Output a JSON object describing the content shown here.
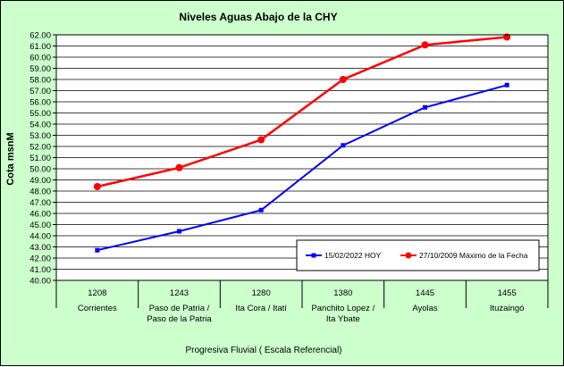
{
  "chart_data": {
    "type": "line",
    "title": "Niveles Aguas Abajo de la CHY",
    "ylabel": "Cota msnM",
    "xlabel": "Progresiva Fluvial ( Escala Referencial)",
    "ylim": [
      40,
      62
    ],
    "ytick_step": 1,
    "grid": true,
    "legend_position": "bottom-right",
    "categories": [
      {
        "code": "1208",
        "name": [
          "Corrientes"
        ]
      },
      {
        "code": "1243",
        "name": [
          "Paso de Patria /",
          "Paso de la Patria"
        ]
      },
      {
        "code": "1280",
        "name": [
          "Ita Cora / Itatí"
        ]
      },
      {
        "code": "1380",
        "name": [
          "Panchito Lopez /",
          "Ita Ybate"
        ]
      },
      {
        "code": "1445",
        "name": [
          "Ayolas"
        ]
      },
      {
        "code": "1455",
        "name": [
          "Ituzaingó"
        ]
      }
    ],
    "series": [
      {
        "name": "15/02/2022 HOY",
        "color": "#0000ff",
        "marker": "square",
        "values": [
          42.7,
          44.4,
          46.3,
          52.1,
          55.5,
          57.5
        ]
      },
      {
        "name": "27/10/2009 Máximo de la Fecha",
        "color": "#ff0000",
        "marker": "circle",
        "values": [
          48.4,
          50.1,
          52.6,
          58.0,
          61.1,
          61.8
        ]
      }
    ]
  }
}
